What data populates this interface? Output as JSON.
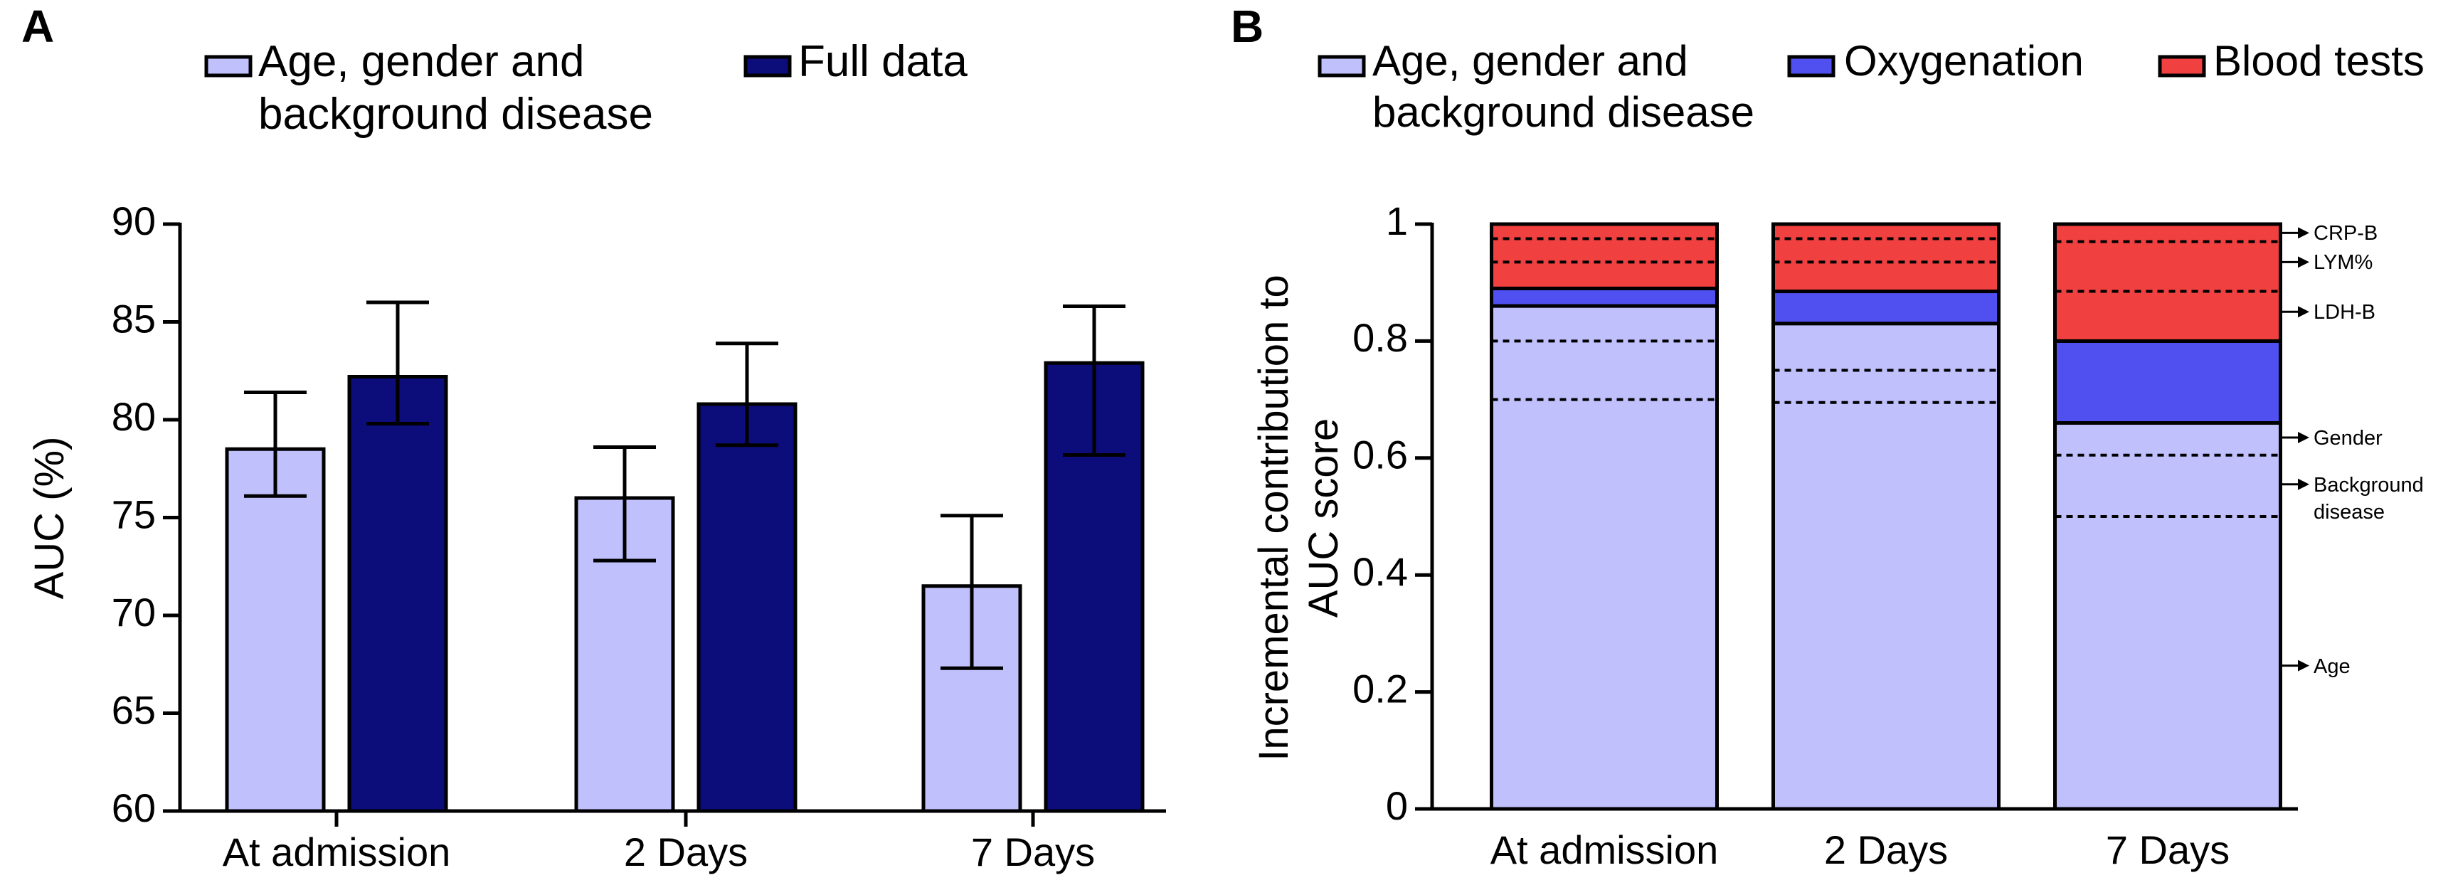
{
  "chart_data": [
    {
      "type": "bar",
      "panel_label": "A",
      "ylabel": "AUC (%)",
      "categories": [
        "At admission",
        "2 Days",
        "7 Days"
      ],
      "series": [
        {
          "name": "Age, gender and background disease",
          "color": "#c0c0fc",
          "values": [
            78.5,
            76.0,
            71.5
          ],
          "lower": [
            76.1,
            72.8,
            67.3
          ],
          "upper": [
            81.4,
            78.6,
            75.1
          ]
        },
        {
          "name": "Full data",
          "color": "#0c0c7a",
          "values": [
            82.2,
            80.8,
            82.9
          ],
          "lower": [
            79.8,
            78.7,
            78.2
          ],
          "upper": [
            86.0,
            83.9,
            85.8
          ]
        }
      ],
      "ylim": [
        60,
        90
      ],
      "yticks": [
        60,
        65,
        70,
        75,
        80,
        85,
        90
      ]
    },
    {
      "type": "stacked_bar",
      "panel_label": "B",
      "ylabel": "Incremental contribution to AUC score",
      "categories": [
        "At admission",
        "2 Days",
        "7 Days"
      ],
      "series": [
        {
          "name": "Age, gender and background disease",
          "color": "#c0c0fc",
          "values": [
            0.86,
            0.83,
            0.66
          ]
        },
        {
          "name": "Oxygenation",
          "color": "#5050f0",
          "values": [
            0.03,
            0.055,
            0.14
          ]
        },
        {
          "name": "Blood tests",
          "color": "#f04040",
          "values": [
            0.11,
            0.115,
            0.2
          ]
        }
      ],
      "dividers": [
        [
          0.7,
          0.8,
          0.935,
          0.975
        ],
        [
          0.695,
          0.75,
          0.935,
          0.975
        ],
        [
          0.5,
          0.605,
          0.885,
          0.97
        ]
      ],
      "annotations": [
        {
          "text": "CRP-B",
          "y": 0.985
        },
        {
          "text": "LYM%",
          "y": 0.935
        },
        {
          "text": "LDH-B",
          "y": 0.85
        },
        {
          "text": "Gender",
          "y": 0.635
        },
        {
          "text": "Background disease",
          "y": 0.555
        },
        {
          "text": "Age",
          "y": 0.245
        }
      ],
      "ylim": [
        0,
        1
      ],
      "yticks": [
        0,
        0.2,
        0.4,
        0.6,
        0.8,
        1
      ]
    }
  ]
}
